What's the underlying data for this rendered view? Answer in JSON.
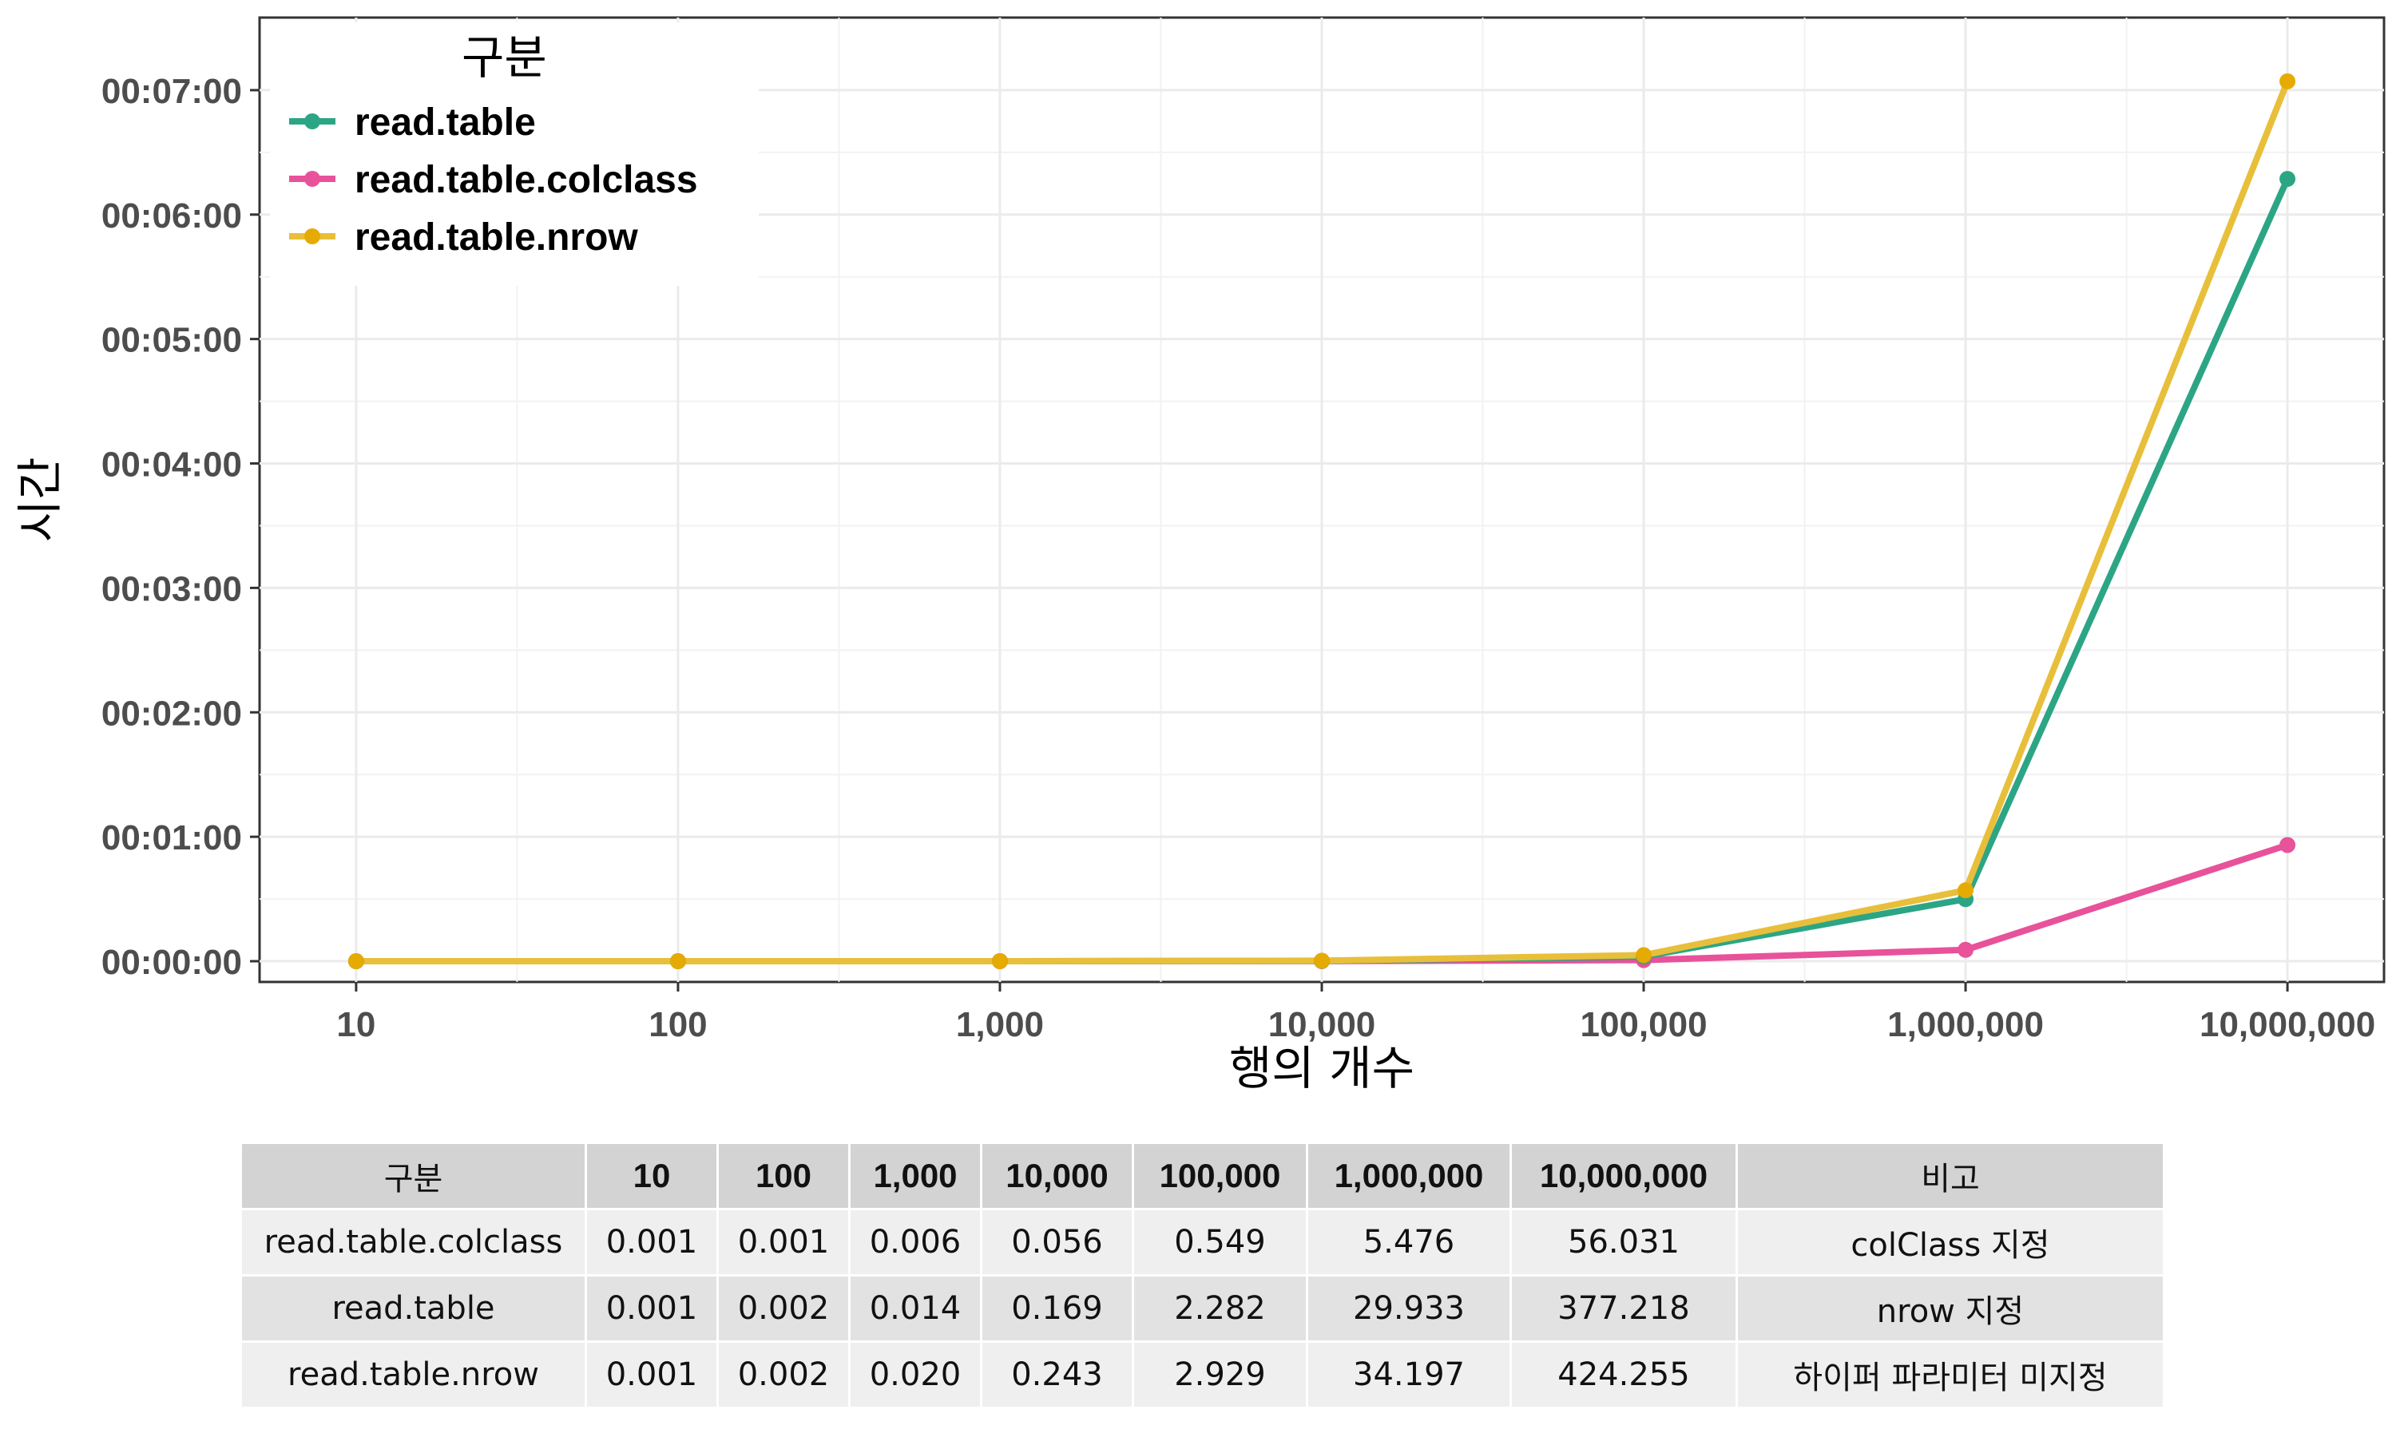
{
  "chart_data": {
    "type": "line",
    "xlabel": "행의 개수",
    "ylabel": "시간",
    "x_scale": "log10",
    "x": [
      10,
      100,
      1000,
      10000,
      100000,
      1000000,
      10000000
    ],
    "x_tick_labels": [
      "10",
      "100",
      "1,000",
      "10,000",
      "100,000",
      "1,000,000",
      "10,000,000"
    ],
    "y_unit": "seconds",
    "y_tick_values": [
      0,
      60,
      120,
      180,
      240,
      300,
      360,
      420
    ],
    "y_tick_labels": [
      "00:00:00",
      "00:01:00",
      "00:02:00",
      "00:03:00",
      "00:04:00",
      "00:05:00",
      "00:06:00",
      "00:07:00"
    ],
    "ylim": [
      -10,
      455
    ],
    "grid": true,
    "legend": {
      "title": "구분",
      "position": "top-left"
    },
    "series": [
      {
        "name": "read.table",
        "color": "#2ca585",
        "values": [
          0.001,
          0.002,
          0.014,
          0.169,
          2.282,
          29.933,
          377.218
        ]
      },
      {
        "name": "read.table.colclass",
        "color": "#e8529a",
        "values": [
          0.001,
          0.001,
          0.006,
          0.056,
          0.549,
          5.476,
          56.031
        ]
      },
      {
        "name": "read.table.nrow",
        "color": "#e6ab02",
        "line_color": "#e8bf3a",
        "values": [
          0.001,
          0.002,
          0.02,
          0.243,
          2.929,
          34.197,
          424.255
        ]
      }
    ]
  },
  "table": {
    "headers": [
      "구분",
      "10",
      "100",
      "1,000",
      "10,000",
      "100,000",
      "1,000,000",
      "10,000,000",
      "비고"
    ],
    "rows": [
      [
        "read.table.colclass",
        "0.001",
        "0.001",
        "0.006",
        "0.056",
        "0.549",
        "5.476",
        "56.031",
        "colClass 지정"
      ],
      [
        "read.table",
        "0.001",
        "0.002",
        "0.014",
        "0.169",
        "2.282",
        "29.933",
        "377.218",
        "nrow 지정"
      ],
      [
        "read.table.nrow",
        "0.001",
        "0.002",
        "0.020",
        "0.243",
        "2.929",
        "34.197",
        "424.255",
        "하이퍼 파라미터 미지정"
      ]
    ]
  }
}
